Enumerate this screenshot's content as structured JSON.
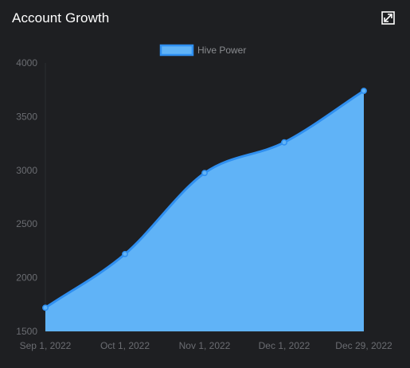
{
  "header": {
    "title": "Account Growth"
  },
  "icons": {
    "expand": "expand-icon"
  },
  "colors": {
    "background": "#1e1f22",
    "fill": "#60b3f7",
    "stroke": "#2f8ff0",
    "tick_text": "#6b6d72",
    "legend_text": "#8a8c90",
    "axis_line": "#2a2c30"
  },
  "chart_data": {
    "type": "area",
    "title": "Account Growth",
    "xlabel": "",
    "ylabel": "",
    "x": [
      "Sep 1, 2022",
      "Oct 1, 2022",
      "Nov 1, 2022",
      "Dec 1, 2022",
      "Dec 29, 2022"
    ],
    "series": [
      {
        "name": "Hive Power",
        "values": [
          1720,
          2220,
          2975,
          3260,
          3740
        ]
      }
    ],
    "ylim": [
      1500,
      4000
    ],
    "yticks": [
      4000,
      3500,
      3000,
      2500,
      2000,
      1500
    ],
    "legend": "top-center",
    "grid": false
  }
}
